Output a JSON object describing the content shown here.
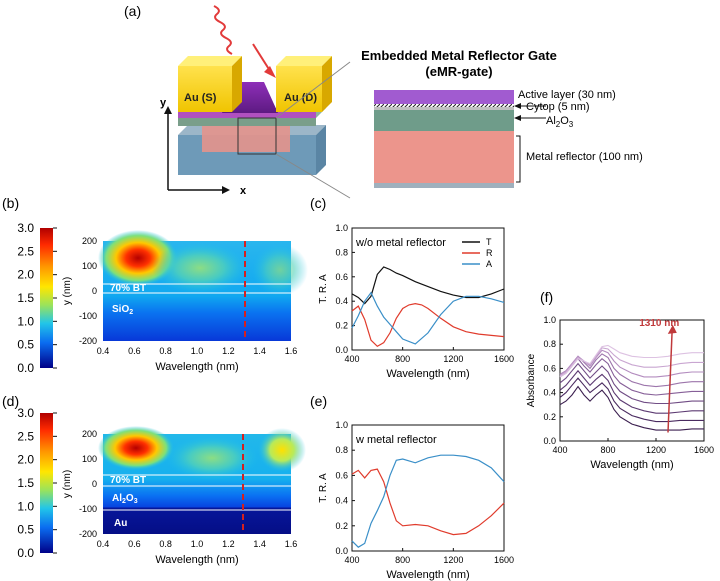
{
  "panel_labels": {
    "a": "(a)",
    "b": "(b)",
    "c": "(c)",
    "d": "(d)",
    "e": "(e)",
    "f": "(f)"
  },
  "device": {
    "source_label": "Au (S)",
    "drain_label": "Au (D)",
    "x_axis": "x",
    "y_axis": "y"
  },
  "inset": {
    "title_line1": "Embedded Metal Reflector Gate",
    "title_line2": "(eMR-gate)",
    "active_layer": "Active layer (30 nm)",
    "cytop": "Cytop (5 nm)",
    "al2o3": "Al",
    "al2o3_sub": "2",
    "al2o3_o": "O",
    "al2o3_sub2": "3",
    "metal_reflector": "Metal reflector (100 nm)"
  },
  "colorbar": {
    "ticks": [
      "3.0",
      "2.5",
      "2.0",
      "1.5",
      "1.0",
      "0.5",
      "0.0"
    ]
  },
  "field_maps": {
    "y_ticks": [
      "200",
      "100",
      "0",
      "-100",
      "-200"
    ],
    "x_ticks": [
      "0.4",
      "0.6",
      "0.8",
      "1.0",
      "1.2",
      "1.4",
      "1.6"
    ],
    "ylabel": "y (nm)",
    "xlabel": "Wavelength (nm)",
    "b_labels": {
      "bt": "70% BT",
      "layer": "SiO",
      "layer_sub": "2"
    },
    "d_labels": {
      "bt": "70% BT",
      "layer": "Al",
      "layer_sub": "2",
      "layer_o": "O",
      "layer_sub2": "3",
      "au": "Au"
    }
  },
  "chart_data": [
    {
      "id": "c",
      "type": "line",
      "title": "w/o metal reflector",
      "xlabel": "Wavelength (nm)",
      "ylabel": "T. R. A",
      "xlim": [
        400,
        1600
      ],
      "ylim": [
        0.0,
        1.0
      ],
      "x_ticks": [
        "400",
        "800",
        "1200",
        "1600"
      ],
      "y_ticks": [
        "0.0",
        "0.2",
        "0.4",
        "0.6",
        "0.8",
        "1.0"
      ],
      "legend": [
        "T",
        "R",
        "A"
      ],
      "series": [
        {
          "name": "T",
          "color": "#111111",
          "x": [
            400,
            450,
            500,
            550,
            600,
            650,
            700,
            750,
            800,
            900,
            1000,
            1100,
            1200,
            1300,
            1400,
            1500,
            1600
          ],
          "y": [
            0.46,
            0.43,
            0.38,
            0.44,
            0.62,
            0.68,
            0.66,
            0.63,
            0.61,
            0.56,
            0.52,
            0.48,
            0.45,
            0.43,
            0.43,
            0.46,
            0.5
          ]
        },
        {
          "name": "R",
          "color": "#e03b2c",
          "x": [
            400,
            450,
            500,
            550,
            600,
            650,
            700,
            750,
            800,
            850,
            900,
            950,
            1000,
            1100,
            1200,
            1300,
            1400,
            1500,
            1600
          ],
          "y": [
            0.32,
            0.36,
            0.25,
            0.08,
            0.03,
            0.06,
            0.14,
            0.26,
            0.34,
            0.37,
            0.38,
            0.37,
            0.34,
            0.26,
            0.19,
            0.15,
            0.13,
            0.12,
            0.11
          ]
        },
        {
          "name": "A",
          "color": "#3a8fc8",
          "x": [
            400,
            450,
            500,
            550,
            600,
            650,
            700,
            750,
            800,
            900,
            1000,
            1100,
            1200,
            1300,
            1400,
            1500,
            1600
          ],
          "y": [
            0.18,
            0.28,
            0.4,
            0.47,
            0.36,
            0.27,
            0.21,
            0.15,
            0.09,
            0.05,
            0.14,
            0.29,
            0.4,
            0.44,
            0.44,
            0.42,
            0.39
          ]
        }
      ]
    },
    {
      "id": "e",
      "type": "line",
      "title": "w metal reflector",
      "xlabel": "Wavelength (nm)",
      "ylabel": "T. R. A",
      "xlim": [
        400,
        1600
      ],
      "ylim": [
        0.0,
        1.0
      ],
      "x_ticks": [
        "400",
        "800",
        "1200",
        "1600"
      ],
      "y_ticks": [
        "0.0",
        "0.2",
        "0.4",
        "0.6",
        "0.8",
        "1.0"
      ],
      "legend": [],
      "series": [
        {
          "name": "R",
          "color": "#e03b2c",
          "x": [
            400,
            450,
            500,
            550,
            600,
            650,
            700,
            750,
            800,
            900,
            1000,
            1100,
            1200,
            1300,
            1400,
            1500,
            1600
          ],
          "y": [
            0.61,
            0.64,
            0.58,
            0.64,
            0.65,
            0.55,
            0.38,
            0.24,
            0.2,
            0.21,
            0.2,
            0.16,
            0.13,
            0.14,
            0.2,
            0.28,
            0.38
          ]
        },
        {
          "name": "A",
          "color": "#3a8fc8",
          "x": [
            400,
            450,
            500,
            550,
            600,
            650,
            700,
            750,
            800,
            900,
            1000,
            1100,
            1200,
            1300,
            1400,
            1500,
            1600
          ],
          "y": [
            0.08,
            0.03,
            0.06,
            0.22,
            0.32,
            0.43,
            0.6,
            0.72,
            0.73,
            0.7,
            0.74,
            0.76,
            0.76,
            0.75,
            0.72,
            0.66,
            0.55
          ]
        }
      ]
    },
    {
      "id": "f",
      "type": "line",
      "title": "",
      "xlabel": "Wavelength (nm)",
      "ylabel": "Absorbance",
      "xlim": [
        400,
        1600
      ],
      "ylim": [
        0.0,
        1.0
      ],
      "x_ticks": [
        "400",
        "800",
        "1200",
        "1600"
      ],
      "y_ticks": [
        "0.0",
        "0.2",
        "0.4",
        "0.6",
        "0.8",
        "1.0"
      ],
      "annotation": "1310 nm",
      "series_x": [
        400,
        450,
        500,
        550,
        600,
        650,
        700,
        750,
        800,
        850,
        900,
        1000,
        1100,
        1200,
        1300,
        1400,
        1500,
        1600
      ],
      "series": [
        {
          "name": "s1",
          "color": "#3b1f4f",
          "y": [
            0.3,
            0.33,
            0.38,
            0.45,
            0.38,
            0.33,
            0.38,
            0.42,
            0.36,
            0.26,
            0.2,
            0.14,
            0.11,
            0.09,
            0.09,
            0.09,
            0.1,
            0.1
          ]
        },
        {
          "name": "s2",
          "color": "#4a2b60",
          "y": [
            0.36,
            0.4,
            0.46,
            0.52,
            0.46,
            0.4,
            0.44,
            0.48,
            0.43,
            0.33,
            0.27,
            0.21,
            0.18,
            0.16,
            0.16,
            0.17,
            0.17,
            0.17
          ]
        },
        {
          "name": "s3",
          "color": "#5c3a72",
          "y": [
            0.42,
            0.46,
            0.52,
            0.58,
            0.52,
            0.46,
            0.51,
            0.55,
            0.5,
            0.4,
            0.34,
            0.28,
            0.25,
            0.23,
            0.23,
            0.24,
            0.25,
            0.25
          ]
        },
        {
          "name": "s4",
          "color": "#704c85",
          "y": [
            0.48,
            0.52,
            0.58,
            0.64,
            0.58,
            0.52,
            0.57,
            0.62,
            0.57,
            0.47,
            0.41,
            0.35,
            0.32,
            0.31,
            0.31,
            0.32,
            0.33,
            0.33
          ]
        },
        {
          "name": "s5",
          "color": "#865f98",
          "y": [
            0.53,
            0.56,
            0.62,
            0.68,
            0.62,
            0.57,
            0.63,
            0.68,
            0.64,
            0.54,
            0.48,
            0.42,
            0.39,
            0.38,
            0.39,
            0.4,
            0.41,
            0.41
          ]
        },
        {
          "name": "s6",
          "color": "#9c75ab",
          "y": [
            0.55,
            0.58,
            0.64,
            0.7,
            0.65,
            0.6,
            0.67,
            0.72,
            0.69,
            0.6,
            0.55,
            0.49,
            0.46,
            0.45,
            0.46,
            0.48,
            0.49,
            0.49
          ]
        },
        {
          "name": "s7",
          "color": "#b38cbf",
          "y": [
            0.55,
            0.58,
            0.64,
            0.7,
            0.66,
            0.62,
            0.69,
            0.75,
            0.73,
            0.66,
            0.61,
            0.56,
            0.53,
            0.53,
            0.54,
            0.56,
            0.57,
            0.57
          ]
        },
        {
          "name": "s8",
          "color": "#c9a6d1",
          "y": [
            0.54,
            0.57,
            0.63,
            0.69,
            0.66,
            0.63,
            0.7,
            0.77,
            0.76,
            0.71,
            0.67,
            0.63,
            0.61,
            0.61,
            0.62,
            0.64,
            0.65,
            0.65
          ]
        },
        {
          "name": "s9",
          "color": "#ddc2e2",
          "y": [
            0.53,
            0.56,
            0.62,
            0.68,
            0.66,
            0.64,
            0.71,
            0.78,
            0.79,
            0.76,
            0.73,
            0.7,
            0.69,
            0.69,
            0.7,
            0.72,
            0.73,
            0.73
          ]
        }
      ]
    }
  ]
}
